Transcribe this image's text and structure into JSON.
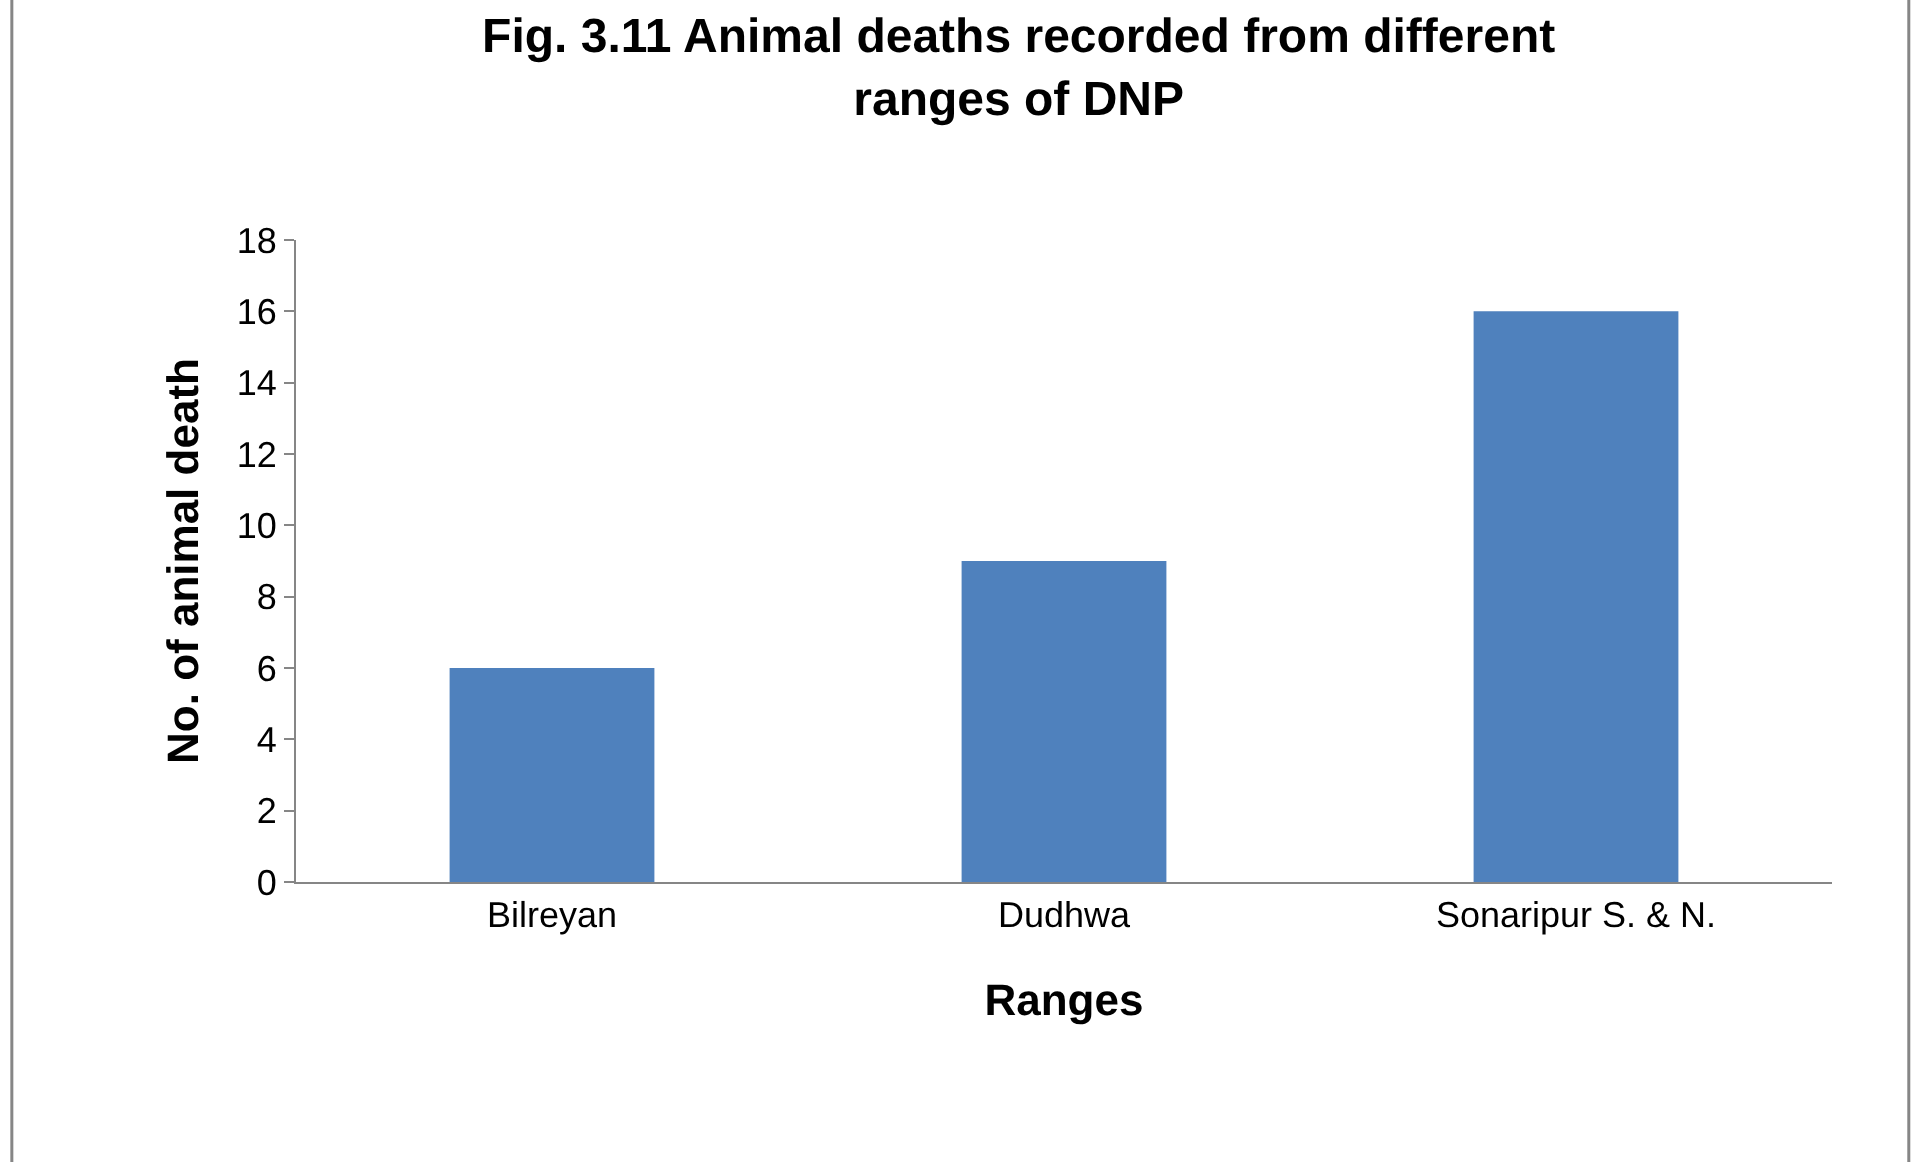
{
  "chart_data": {
    "type": "bar",
    "title": "Fig. 3.11 Animal deaths recorded from different ranges of DNP",
    "xlabel": "Ranges",
    "ylabel": "No. of animal death",
    "categories": [
      "Bilreyan",
      "Dudhwa",
      "Sonaripur S. & N."
    ],
    "values": [
      6,
      9,
      16
    ],
    "color": "#4f81bd",
    "ylim": [
      0,
      18
    ],
    "yticks": [
      0,
      2,
      4,
      6,
      8,
      10,
      12,
      14,
      16,
      18
    ],
    "legend": false
  }
}
